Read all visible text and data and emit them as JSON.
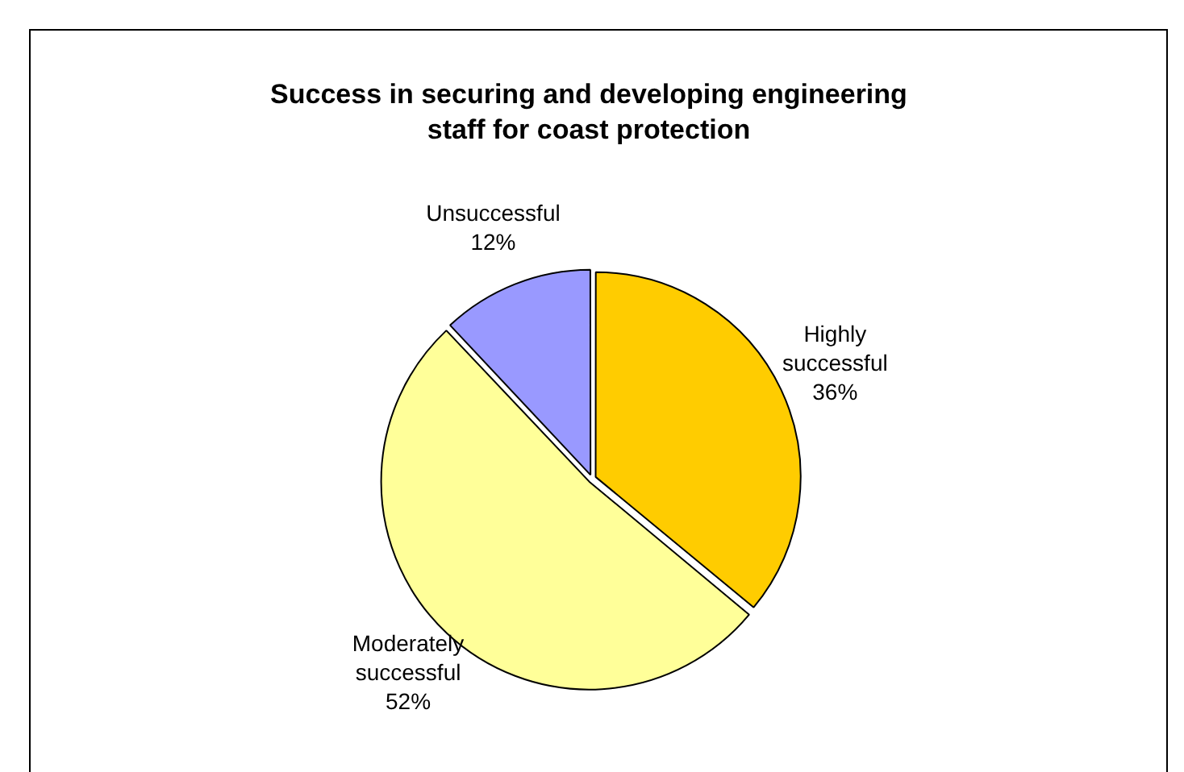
{
  "chart_data": {
    "type": "pie",
    "title": "Success in securing and developing engineering staff for coast protection",
    "categories": [
      "Highly successful",
      "Moderately successful",
      "Unsuccessful"
    ],
    "values": [
      36,
      52,
      12
    ],
    "colors": [
      "#ffcc00",
      "#ffff99",
      "#9999ff"
    ],
    "value_labels": [
      "36%",
      "52%",
      "12%"
    ],
    "legend": false
  }
}
